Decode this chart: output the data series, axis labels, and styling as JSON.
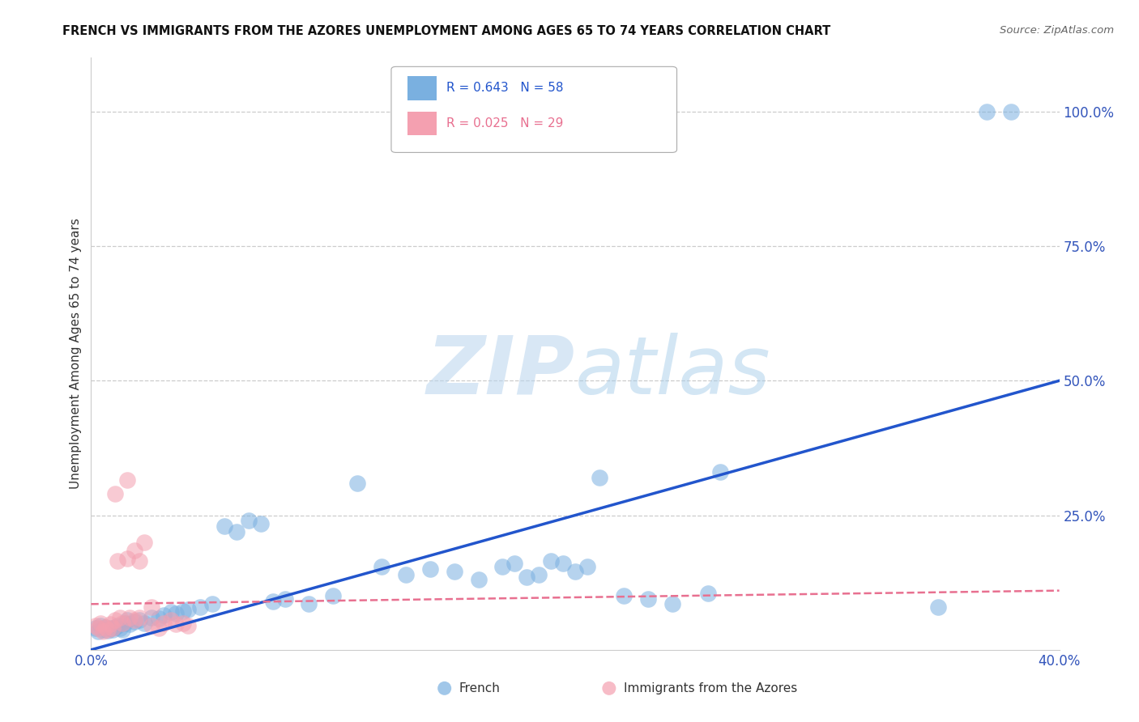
{
  "title": "FRENCH VS IMMIGRANTS FROM THE AZORES UNEMPLOYMENT AMONG AGES 65 TO 74 YEARS CORRELATION CHART",
  "source": "Source: ZipAtlas.com",
  "ylabel": "Unemployment Among Ages 65 to 74 years",
  "xlim": [
    0.0,
    0.4
  ],
  "ylim": [
    0.0,
    1.1
  ],
  "background_color": "#ffffff",
  "watermark_zip": "ZIP",
  "watermark_atlas": "atlas",
  "legend_r_french": "R = 0.643",
  "legend_n_french": "N = 58",
  "legend_r_azores": "R = 0.025",
  "legend_n_azores": "N = 29",
  "legend_label_french": "French",
  "legend_label_azores": "Immigrants from the Azores",
  "french_color": "#7ab0e0",
  "azores_color": "#f4a0b0",
  "french_line_color": "#2255cc",
  "azores_line_color": "#e87090",
  "french_x": [
    0.002,
    0.003,
    0.004,
    0.005,
    0.006,
    0.007,
    0.008,
    0.009,
    0.01,
    0.011,
    0.012,
    0.013,
    0.014,
    0.015,
    0.016,
    0.018,
    0.02,
    0.022,
    0.025,
    0.028,
    0.03,
    0.033,
    0.035,
    0.038,
    0.04,
    0.045,
    0.05,
    0.055,
    0.06,
    0.065,
    0.07,
    0.075,
    0.08,
    0.09,
    0.1,
    0.11,
    0.12,
    0.13,
    0.14,
    0.15,
    0.16,
    0.17,
    0.175,
    0.18,
    0.185,
    0.19,
    0.195,
    0.2,
    0.205,
    0.21,
    0.22,
    0.23,
    0.24,
    0.255,
    0.26,
    0.35,
    0.37,
    0.38
  ],
  "french_y": [
    0.04,
    0.035,
    0.045,
    0.038,
    0.042,
    0.036,
    0.04,
    0.038,
    0.042,
    0.045,
    0.04,
    0.038,
    0.05,
    0.055,
    0.048,
    0.052,
    0.055,
    0.05,
    0.06,
    0.058,
    0.065,
    0.07,
    0.068,
    0.072,
    0.075,
    0.08,
    0.085,
    0.23,
    0.22,
    0.24,
    0.235,
    0.09,
    0.095,
    0.085,
    0.1,
    0.31,
    0.155,
    0.14,
    0.15,
    0.145,
    0.13,
    0.155,
    0.16,
    0.135,
    0.14,
    0.165,
    0.16,
    0.145,
    0.155,
    0.32,
    0.1,
    0.095,
    0.085,
    0.105,
    0.33,
    0.08,
    1.0,
    1.0
  ],
  "french_line_x0": 0.0,
  "french_line_x1": 0.4,
  "french_line_y0": 0.0,
  "french_line_y1": 0.5,
  "azores_x": [
    0.002,
    0.003,
    0.004,
    0.005,
    0.006,
    0.007,
    0.008,
    0.009,
    0.01,
    0.011,
    0.012,
    0.013,
    0.015,
    0.016,
    0.018,
    0.02,
    0.022,
    0.025,
    0.028,
    0.03,
    0.033,
    0.035,
    0.038,
    0.04,
    0.01,
    0.015,
    0.018,
    0.02,
    0.025
  ],
  "azores_y": [
    0.045,
    0.04,
    0.05,
    0.035,
    0.042,
    0.038,
    0.048,
    0.04,
    0.055,
    0.165,
    0.06,
    0.05,
    0.17,
    0.06,
    0.055,
    0.06,
    0.2,
    0.045,
    0.04,
    0.05,
    0.055,
    0.048,
    0.05,
    0.045,
    0.29,
    0.315,
    0.185,
    0.165,
    0.08
  ],
  "azores_line_x0": 0.0,
  "azores_line_x1": 0.4,
  "azores_line_y0": 0.085,
  "azores_line_y1": 0.11
}
